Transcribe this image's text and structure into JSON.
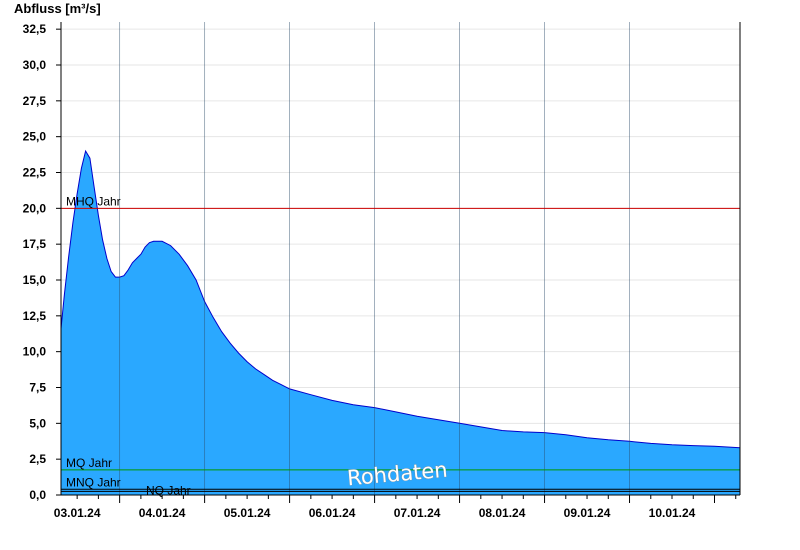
{
  "chart_data": {
    "type": "area",
    "title": "",
    "ylabel": "Abfluss [m³/s]",
    "xlabel": "",
    "ylim": [
      0,
      33
    ],
    "xlim": [
      -0.19,
      7.8
    ],
    "y_ticks": [
      {
        "value": 0,
        "label": "0,0"
      },
      {
        "value": 2.5,
        "label": "2,5"
      },
      {
        "value": 5,
        "label": "5,0"
      },
      {
        "value": 7.5,
        "label": "7,5"
      },
      {
        "value": 10,
        "label": "10,0"
      },
      {
        "value": 12.5,
        "label": "12,5"
      },
      {
        "value": 15,
        "label": "15,0"
      },
      {
        "value": 17.5,
        "label": "17,5"
      },
      {
        "value": 20,
        "label": "20,0"
      },
      {
        "value": 22.5,
        "label": "22,5"
      },
      {
        "value": 25,
        "label": "25,0"
      },
      {
        "value": 27.5,
        "label": "27,5"
      },
      {
        "value": 30,
        "label": "30,0"
      },
      {
        "value": 32.5,
        "label": "32,5"
      }
    ],
    "x_day_ticks": [
      {
        "value": 0,
        "label": "03.01.24"
      },
      {
        "value": 1,
        "label": "04.01.24"
      },
      {
        "value": 2,
        "label": "05.01.24"
      },
      {
        "value": 3,
        "label": "06.01.24"
      },
      {
        "value": 4,
        "label": "07.01.24"
      },
      {
        "value": 5,
        "label": "08.01.24"
      },
      {
        "value": 6,
        "label": "09.01.24"
      },
      {
        "value": 7,
        "label": "10.01.24"
      }
    ],
    "day_boundaries": [
      0.5,
      1.5,
      2.5,
      3.5,
      4.5,
      5.5,
      6.5
    ],
    "series": [
      {
        "name": "Abfluss",
        "color": "#2aa8ff",
        "line_color": "#0000cc",
        "x": [
          -0.19,
          -0.15,
          -0.1,
          -0.05,
          0.0,
          0.05,
          0.1,
          0.15,
          0.2,
          0.25,
          0.3,
          0.35,
          0.4,
          0.45,
          0.5,
          0.55,
          0.6,
          0.65,
          0.7,
          0.75,
          0.8,
          0.85,
          0.9,
          0.95,
          1.0,
          1.1,
          1.2,
          1.3,
          1.4,
          1.5,
          1.6,
          1.7,
          1.8,
          1.9,
          2.0,
          2.1,
          2.2,
          2.3,
          2.4,
          2.5,
          2.75,
          3.0,
          3.25,
          3.5,
          3.75,
          4.0,
          4.25,
          4.5,
          4.75,
          5.0,
          5.25,
          5.5,
          5.75,
          6.0,
          6.25,
          6.5,
          6.75,
          7.0,
          7.25,
          7.5,
          7.8
        ],
        "y": [
          11.6,
          14.0,
          16.6,
          19.0,
          21.0,
          22.8,
          24.0,
          23.5,
          21.5,
          19.5,
          17.8,
          16.5,
          15.6,
          15.2,
          15.2,
          15.3,
          15.7,
          16.2,
          16.5,
          16.8,
          17.3,
          17.6,
          17.7,
          17.7,
          17.7,
          17.4,
          16.8,
          16.0,
          15.0,
          13.5,
          12.4,
          11.4,
          10.6,
          9.9,
          9.3,
          8.8,
          8.4,
          8.0,
          7.7,
          7.4,
          7.0,
          6.6,
          6.3,
          6.1,
          5.8,
          5.5,
          5.25,
          5.0,
          4.75,
          4.5,
          4.4,
          4.35,
          4.2,
          4.0,
          3.85,
          3.75,
          3.6,
          3.5,
          3.45,
          3.4,
          3.3
        ]
      }
    ],
    "reference_lines": [
      {
        "name": "MHQ Jahr",
        "label": "MHQ Jahr",
        "value": 20.0,
        "color": "#cc0000"
      },
      {
        "name": "MQ Jahr",
        "label": "MQ Jahr",
        "value": 1.75,
        "color": "#009900"
      },
      {
        "name": "MNQ Jahr",
        "label": "MNQ Jahr",
        "value": 0.4,
        "color": "#000000"
      },
      {
        "name": "NQ Jahr",
        "label": "NQ Jahr",
        "value": 0.25,
        "color": "#000000"
      }
    ],
    "grid": true,
    "watermark": "Rohdaten"
  }
}
